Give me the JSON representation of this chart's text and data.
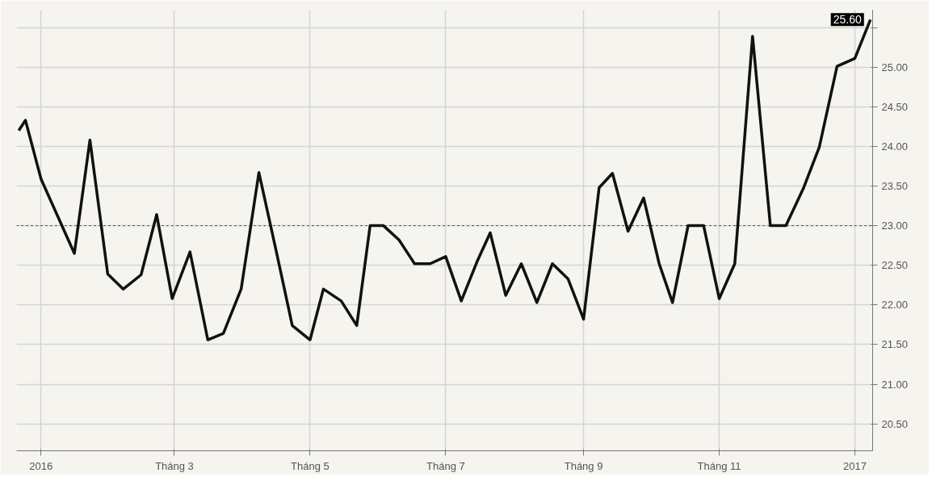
{
  "chart_data": {
    "type": "line",
    "x": [
      "2015-12-22",
      "2015-12-25",
      "2016-01-01",
      "2016-01-16",
      "2016-01-23",
      "2016-01-31",
      "2016-02-07",
      "2016-02-15",
      "2016-02-22",
      "2016-02-29",
      "2016-03-08",
      "2016-03-16",
      "2016-03-23",
      "2016-03-31",
      "2016-04-08",
      "2016-04-16",
      "2016-04-23",
      "2016-05-01",
      "2016-05-07",
      "2016-05-15",
      "2016-05-22",
      "2016-05-28",
      "2016-06-03",
      "2016-06-10",
      "2016-06-17",
      "2016-06-24",
      "2016-07-01",
      "2016-07-08",
      "2016-07-15",
      "2016-07-21",
      "2016-07-28",
      "2016-08-04",
      "2016-08-11",
      "2016-08-18",
      "2016-08-25",
      "2016-09-01",
      "2016-09-08",
      "2016-09-14",
      "2016-09-21",
      "2016-09-28",
      "2016-10-05",
      "2016-10-11",
      "2016-10-18",
      "2016-10-25",
      "2016-11-01",
      "2016-11-08",
      "2016-11-16",
      "2016-11-24",
      "2016-12-01",
      "2016-12-09",
      "2016-12-16",
      "2016-12-24",
      "2017-01-01",
      "2017-01-08"
    ],
    "series": [
      {
        "color": "#111111",
        "values": [
          24.2,
          24.33,
          23.59,
          22.65,
          24.08,
          22.39,
          22.2,
          22.38,
          23.14,
          22.08,
          22.67,
          21.56,
          21.64,
          22.2,
          23.67,
          22.65,
          21.74,
          21.56,
          22.2,
          22.05,
          21.74,
          23.0,
          23.0,
          22.82,
          22.52,
          22.52,
          22.61,
          22.05,
          22.54,
          22.91,
          22.12,
          22.52,
          22.03,
          22.52,
          22.33,
          21.82,
          23.48,
          23.66,
          22.93,
          23.35,
          22.52,
          22.03,
          23.0,
          23.0,
          22.08,
          22.52,
          25.39,
          23.0,
          23.0,
          23.48,
          23.99,
          25.01,
          25.11,
          25.6
        ]
      }
    ],
    "xlim": [
      "2015-12-21",
      "2017-01-09"
    ],
    "xticks": [
      {
        "value": "2016-01-01",
        "label": "2016"
      },
      {
        "value": "2016-03-01",
        "label": "Tháng 3"
      },
      {
        "value": "2016-05-01",
        "label": "Tháng 5"
      },
      {
        "value": "2016-07-01",
        "label": "Tháng 7"
      },
      {
        "value": "2016-09-01",
        "label": "Tháng 9"
      },
      {
        "value": "2016-11-01",
        "label": "Tháng 11"
      },
      {
        "value": "2017-01-01",
        "label": "2017"
      }
    ],
    "ylim": [
      20.16,
      25.72
    ],
    "yticks": [
      {
        "value": 20.5,
        "label": "20.50"
      },
      {
        "value": 21,
        "label": "21.00"
      },
      {
        "value": 21.5,
        "label": "21.50"
      },
      {
        "value": 22,
        "label": "22.00"
      },
      {
        "value": 22.5,
        "label": "22.50"
      },
      {
        "value": 23,
        "label": "23.00"
      },
      {
        "value": 23.5,
        "label": "23.50"
      },
      {
        "value": 24,
        "label": "24.00"
      },
      {
        "value": 24.5,
        "label": "24.50"
      },
      {
        "value": 25,
        "label": "25.00"
      },
      {
        "value": 25.5,
        "label": null
      }
    ],
    "ref_lines": [
      {
        "axis": "y",
        "value": 23,
        "color": "#222222",
        "line_style": "dotted"
      }
    ],
    "annotations": [
      {
        "text": "25.60",
        "x": "2017-01-08",
        "y": 25.6
      }
    ],
    "grid": true,
    "marker": "none",
    "line_style": "solid"
  }
}
